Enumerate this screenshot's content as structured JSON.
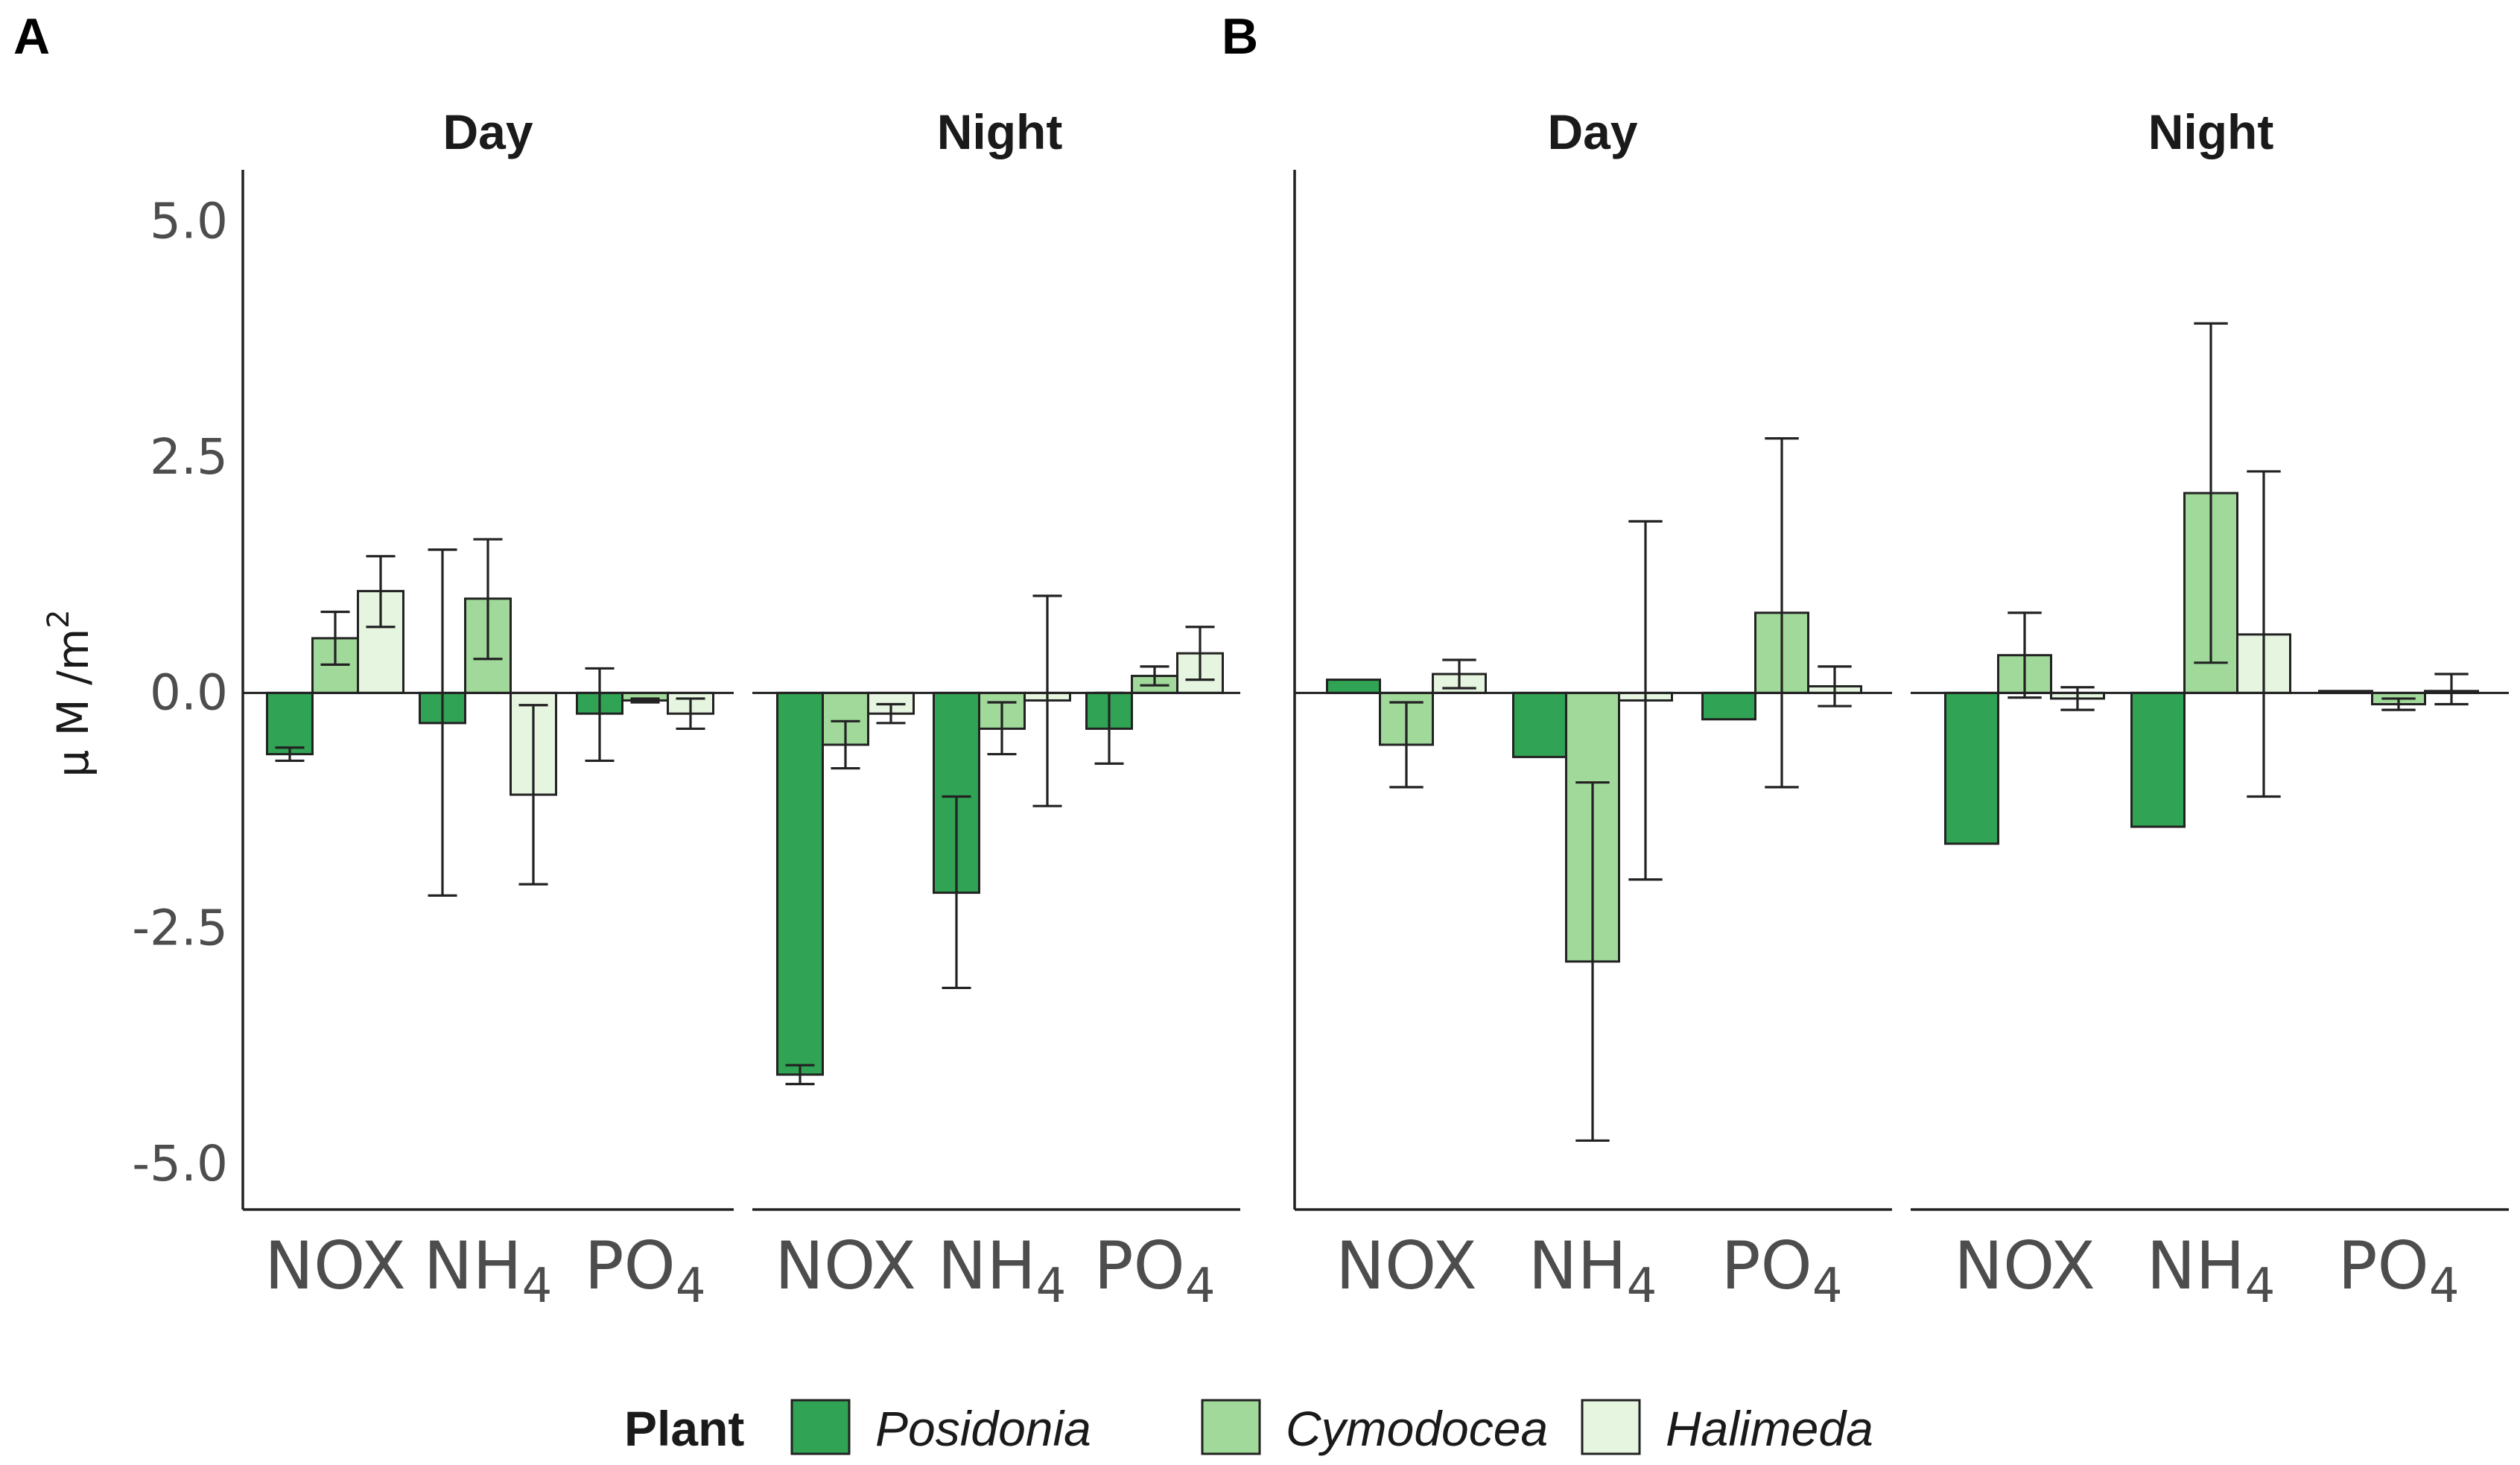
{
  "chart_data": {
    "type": "bar",
    "ylabel": "μM/m2",
    "ylabel_main": "μ M /m",
    "ylabel_sup": "2",
    "yticks": [
      "5.0",
      "2.5",
      "0.0",
      "-2.5",
      "-5.0"
    ],
    "ytick_values": [
      5.0,
      2.5,
      0.0,
      -2.5,
      -5.0
    ],
    "ylim": [
      -5.45,
      5.55
    ],
    "categories": [
      "NOX",
      "NH4",
      "PO4"
    ],
    "category_labels": [
      {
        "main": "NOX",
        "sub": ""
      },
      {
        "main": "NH",
        "sub": "4"
      },
      {
        "main": "PO",
        "sub": "4"
      }
    ],
    "legend": {
      "title": "Plant",
      "items": [
        {
          "name": "Posidonia",
          "color": "#31a354"
        },
        {
          "name": "Cymodocea",
          "color": "#a1d99b"
        },
        {
          "name": "Halimeda",
          "color": "#e5f5e0"
        }
      ]
    },
    "panels": [
      {
        "label": "A",
        "facets": [
          {
            "title": "Day",
            "series": [
              {
                "name": "Posidonia",
                "values": [
                  -0.65,
                  -0.32,
                  -0.22
                ],
                "err_low": [
                  -0.72,
                  -2.15,
                  -0.72
                ],
                "err_high": [
                  -0.58,
                  1.52,
                  0.26
                ]
              },
              {
                "name": "Cymodocea",
                "values": [
                  0.58,
                  1.0,
                  -0.08
                ],
                "err_low": [
                  0.3,
                  0.36,
                  -0.1
                ],
                "err_high": [
                  0.86,
                  1.63,
                  -0.06
                ]
              },
              {
                "name": "Halimeda",
                "values": [
                  1.08,
                  -1.08,
                  -0.22
                ],
                "err_low": [
                  0.7,
                  -2.03,
                  -0.38
                ],
                "err_high": [
                  1.45,
                  -0.13,
                  -0.06
                ]
              }
            ]
          },
          {
            "title": "Night",
            "series": [
              {
                "name": "Posidonia",
                "values": [
                  -4.05,
                  -2.12,
                  -0.38
                ],
                "err_low": [
                  -4.15,
                  -3.13,
                  -0.75
                ],
                "err_high": [
                  -3.95,
                  -1.1,
                  0.0
                ]
              },
              {
                "name": "Cymodocea",
                "values": [
                  -0.55,
                  -0.38,
                  0.18
                ],
                "err_low": [
                  -0.8,
                  -0.65,
                  0.08
                ],
                "err_high": [
                  -0.3,
                  -0.1,
                  0.28
                ]
              },
              {
                "name": "Halimeda",
                "values": [
                  -0.22,
                  -0.08,
                  0.42
                ],
                "err_low": [
                  -0.32,
                  -1.2,
                  0.14
                ],
                "err_high": [
                  -0.12,
                  1.03,
                  0.7
                ]
              }
            ]
          }
        ]
      },
      {
        "label": "B",
        "facets": [
          {
            "title": "Day",
            "series": [
              {
                "name": "Posidonia",
                "values": [
                  0.14,
                  -0.68,
                  -0.28
                ],
                "err_low": [
                  null,
                  null,
                  null
                ],
                "err_high": [
                  null,
                  null,
                  null
                ]
              },
              {
                "name": "Cymodocea",
                "values": [
                  -0.55,
                  -2.85,
                  0.85
                ],
                "err_low": [
                  -1.0,
                  -4.75,
                  -1.0
                ],
                "err_high": [
                  -0.1,
                  -0.95,
                  2.7
                ]
              },
              {
                "name": "Halimeda",
                "values": [
                  0.2,
                  -0.08,
                  0.07
                ],
                "err_low": [
                  0.05,
                  -1.98,
                  -0.14
                ],
                "err_high": [
                  0.35,
                  1.82,
                  0.28
                ]
              }
            ]
          },
          {
            "title": "Night",
            "series": [
              {
                "name": "Posidonia",
                "values": [
                  -1.6,
                  -1.42,
                  0.02
                ],
                "err_low": [
                  null,
                  null,
                  null
                ],
                "err_high": [
                  null,
                  null,
                  null
                ]
              },
              {
                "name": "Cymodocea",
                "values": [
                  0.4,
                  2.12,
                  -0.12
                ],
                "err_low": [
                  -0.05,
                  0.32,
                  -0.18
                ],
                "err_high": [
                  0.85,
                  3.92,
                  -0.06
                ]
              },
              {
                "name": "Halimeda",
                "values": [
                  -0.06,
                  0.62,
                  0.02
                ],
                "err_low": [
                  -0.18,
                  -1.1,
                  -0.12
                ],
                "err_high": [
                  0.06,
                  2.35,
                  0.2
                ]
              }
            ]
          }
        ]
      }
    ]
  }
}
